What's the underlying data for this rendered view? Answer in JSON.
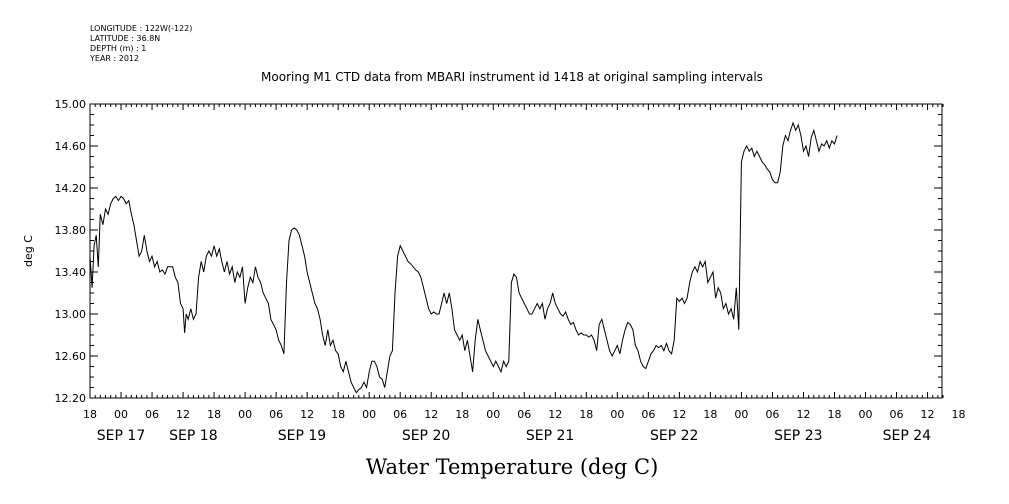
{
  "header": {
    "longitude": "LONGITUDE : 122W(-122)",
    "latitude": "LATITUDE : 36.8N",
    "depth": "DEPTH (m) : 1",
    "year": "YEAR : 2012"
  },
  "chart_data": {
    "type": "line",
    "title": "Mooring M1 CTD data from MBARI instrument id 1418 at original sampling intervals",
    "xlabel": "Water Temperature (deg C)",
    "ylabel": "deg C",
    "ylim": [
      12.2,
      15.0
    ],
    "y_ticks": [
      "12.20",
      "12.60",
      "13.00",
      "13.40",
      "13.80",
      "14.20",
      "14.60",
      "15.00"
    ],
    "x_unit": "hours since SEP 16 18:00",
    "xlim": [
      0,
      168
    ],
    "x_hour_ticks": [
      "18",
      "00",
      "06",
      "12",
      "18",
      "00",
      "06",
      "12",
      "18",
      "00",
      "06",
      "12",
      "18",
      "00",
      "06",
      "12",
      "18",
      "00",
      "06",
      "12",
      "18",
      "00",
      "06",
      "12",
      "18",
      "00",
      "06",
      "12",
      "18"
    ],
    "x_date_labels": [
      "SEP 17",
      "SEP 18",
      "SEP 19",
      "SEP 20",
      "SEP 21",
      "SEP 22",
      "SEP 23",
      "SEP 24"
    ],
    "series": [
      {
        "values": [
          [
            0,
            13.55
          ],
          [
            0.4,
            13.25
          ],
          [
            0.8,
            13.65
          ],
          [
            1.2,
            13.75
          ],
          [
            1.6,
            13.45
          ],
          [
            2,
            13.95
          ],
          [
            2.5,
            13.85
          ],
          [
            3,
            14.0
          ],
          [
            3.5,
            13.95
          ],
          [
            4,
            14.05
          ],
          [
            4.5,
            14.1
          ],
          [
            5,
            14.12
          ],
          [
            5.5,
            14.08
          ],
          [
            6,
            14.12
          ],
          [
            6.5,
            14.1
          ],
          [
            7,
            14.05
          ],
          [
            7.5,
            14.08
          ],
          [
            8,
            13.95
          ],
          [
            8.5,
            13.85
          ],
          [
            9,
            13.7
          ],
          [
            9.5,
            13.55
          ],
          [
            10,
            13.6
          ],
          [
            10.5,
            13.75
          ],
          [
            11,
            13.6
          ],
          [
            11.5,
            13.5
          ],
          [
            12,
            13.55
          ],
          [
            12.5,
            13.45
          ],
          [
            13,
            13.5
          ],
          [
            13.5,
            13.4
          ],
          [
            14,
            13.42
          ],
          [
            14.5,
            13.38
          ],
          [
            15,
            13.45
          ],
          [
            16,
            13.45
          ],
          [
            16.5,
            13.35
          ],
          [
            17,
            13.3
          ],
          [
            17.5,
            13.1
          ],
          [
            18,
            13.05
          ],
          [
            18.3,
            12.82
          ],
          [
            18.6,
            13.0
          ],
          [
            19,
            12.95
          ],
          [
            19.5,
            13.05
          ],
          [
            20,
            12.95
          ],
          [
            20.5,
            13.0
          ],
          [
            21,
            13.35
          ],
          [
            21.5,
            13.5
          ],
          [
            22,
            13.4
          ],
          [
            22.5,
            13.55
          ],
          [
            23,
            13.6
          ],
          [
            23.5,
            13.55
          ],
          [
            24,
            13.65
          ],
          [
            24.5,
            13.55
          ],
          [
            25,
            13.62
          ],
          [
            25.5,
            13.5
          ],
          [
            26,
            13.4
          ],
          [
            26.5,
            13.5
          ],
          [
            27,
            13.38
          ],
          [
            27.5,
            13.45
          ],
          [
            28,
            13.3
          ],
          [
            28.5,
            13.4
          ],
          [
            29,
            13.35
          ],
          [
            29.5,
            13.45
          ],
          [
            30,
            13.1
          ],
          [
            30.5,
            13.25
          ],
          [
            31,
            13.35
          ],
          [
            31.5,
            13.3
          ],
          [
            32,
            13.45
          ],
          [
            32.5,
            13.35
          ],
          [
            33,
            13.3
          ],
          [
            33.5,
            13.2
          ],
          [
            34,
            13.15
          ],
          [
            34.5,
            13.1
          ],
          [
            35,
            12.95
          ],
          [
            35.5,
            12.9
          ],
          [
            36,
            12.85
          ],
          [
            36.5,
            12.75
          ],
          [
            37,
            12.7
          ],
          [
            37.5,
            12.62
          ],
          [
            38,
            13.3
          ],
          [
            38.5,
            13.7
          ],
          [
            39,
            13.8
          ],
          [
            39.5,
            13.82
          ],
          [
            40,
            13.8
          ],
          [
            40.5,
            13.75
          ],
          [
            41,
            13.65
          ],
          [
            41.5,
            13.55
          ],
          [
            42,
            13.4
          ],
          [
            42.5,
            13.3
          ],
          [
            43,
            13.2
          ],
          [
            43.5,
            13.1
          ],
          [
            44,
            13.05
          ],
          [
            44.5,
            12.95
          ],
          [
            45,
            12.8
          ],
          [
            45.5,
            12.7
          ],
          [
            46,
            12.85
          ],
          [
            46.5,
            12.7
          ],
          [
            47,
            12.75
          ],
          [
            47.5,
            12.65
          ],
          [
            48,
            12.62
          ],
          [
            48.5,
            12.5
          ],
          [
            49,
            12.45
          ],
          [
            49.5,
            12.55
          ],
          [
            50,
            12.45
          ],
          [
            50.5,
            12.35
          ],
          [
            51,
            12.3
          ],
          [
            51.5,
            12.25
          ],
          [
            52,
            12.28
          ],
          [
            52.5,
            12.3
          ],
          [
            53,
            12.35
          ],
          [
            53.5,
            12.3
          ],
          [
            54,
            12.45
          ],
          [
            54.5,
            12.55
          ],
          [
            55,
            12.55
          ],
          [
            55.5,
            12.5
          ],
          [
            56,
            12.4
          ],
          [
            56.5,
            12.38
          ],
          [
            57,
            12.3
          ],
          [
            57.5,
            12.45
          ],
          [
            58,
            12.6
          ],
          [
            58.5,
            12.65
          ],
          [
            59,
            13.2
          ],
          [
            59.5,
            13.55
          ],
          [
            60,
            13.65
          ],
          [
            60.5,
            13.6
          ],
          [
            61,
            13.55
          ],
          [
            61.5,
            13.5
          ],
          [
            62,
            13.48
          ],
          [
            62.5,
            13.45
          ],
          [
            63,
            13.42
          ],
          [
            63.5,
            13.4
          ],
          [
            64,
            13.35
          ],
          [
            64.5,
            13.25
          ],
          [
            65,
            13.15
          ],
          [
            65.5,
            13.05
          ],
          [
            66,
            13.0
          ],
          [
            66.5,
            13.02
          ],
          [
            67,
            13.0
          ],
          [
            67.5,
            13.0
          ],
          [
            68,
            13.1
          ],
          [
            68.5,
            13.2
          ],
          [
            69,
            13.1
          ],
          [
            69.5,
            13.2
          ],
          [
            70,
            13.05
          ],
          [
            70.5,
            12.85
          ],
          [
            71,
            12.8
          ],
          [
            71.5,
            12.75
          ],
          [
            72,
            12.8
          ],
          [
            72.5,
            12.65
          ],
          [
            73,
            12.75
          ],
          [
            73.5,
            12.6
          ],
          [
            74,
            12.45
          ],
          [
            74.5,
            12.75
          ],
          [
            75,
            12.95
          ],
          [
            75.5,
            12.85
          ],
          [
            76,
            12.75
          ],
          [
            76.5,
            12.65
          ],
          [
            77,
            12.6
          ],
          [
            77.5,
            12.55
          ],
          [
            78,
            12.5
          ],
          [
            78.5,
            12.55
          ],
          [
            79,
            12.5
          ],
          [
            79.5,
            12.45
          ],
          [
            80,
            12.55
          ],
          [
            80.5,
            12.5
          ],
          [
            81,
            12.55
          ],
          [
            81.5,
            13.3
          ],
          [
            82,
            13.38
          ],
          [
            82.5,
            13.35
          ],
          [
            83,
            13.2
          ],
          [
            83.5,
            13.15
          ],
          [
            84,
            13.1
          ],
          [
            84.5,
            13.05
          ],
          [
            85,
            13.0
          ],
          [
            85.5,
            13.0
          ],
          [
            86,
            13.05
          ],
          [
            86.5,
            13.1
          ],
          [
            87,
            13.05
          ],
          [
            87.5,
            13.1
          ],
          [
            88,
            12.95
          ],
          [
            88.5,
            13.05
          ],
          [
            89,
            13.1
          ],
          [
            89.5,
            13.2
          ],
          [
            90,
            13.1
          ],
          [
            90.5,
            13.05
          ],
          [
            91,
            13.0
          ],
          [
            91.5,
            12.98
          ],
          [
            92,
            13.02
          ],
          [
            92.5,
            12.95
          ],
          [
            93,
            12.9
          ],
          [
            93.5,
            12.92
          ],
          [
            94,
            12.85
          ],
          [
            94.5,
            12.8
          ],
          [
            95,
            12.82
          ],
          [
            95.5,
            12.8
          ],
          [
            96,
            12.8
          ],
          [
            96.5,
            12.78
          ],
          [
            97,
            12.8
          ],
          [
            97.5,
            12.75
          ],
          [
            98,
            12.65
          ],
          [
            98.5,
            12.9
          ],
          [
            99,
            12.95
          ],
          [
            99.5,
            12.85
          ],
          [
            100,
            12.75
          ],
          [
            100.5,
            12.65
          ],
          [
            101,
            12.6
          ],
          [
            101.5,
            12.65
          ],
          [
            102,
            12.7
          ],
          [
            102.5,
            12.62
          ],
          [
            103,
            12.75
          ],
          [
            103.5,
            12.85
          ],
          [
            104,
            12.92
          ],
          [
            104.5,
            12.9
          ],
          [
            105,
            12.85
          ],
          [
            105.5,
            12.7
          ],
          [
            106,
            12.65
          ],
          [
            106.5,
            12.55
          ],
          [
            107,
            12.5
          ],
          [
            107.5,
            12.48
          ],
          [
            108,
            12.55
          ],
          [
            108.5,
            12.62
          ],
          [
            109,
            12.65
          ],
          [
            109.5,
            12.7
          ],
          [
            110,
            12.68
          ],
          [
            110.5,
            12.7
          ],
          [
            111,
            12.65
          ],
          [
            111.5,
            12.72
          ],
          [
            112,
            12.65
          ],
          [
            112.5,
            12.62
          ],
          [
            113,
            12.75
          ],
          [
            113.5,
            13.15
          ],
          [
            114,
            13.12
          ],
          [
            114.5,
            13.15
          ],
          [
            115,
            13.1
          ],
          [
            115.5,
            13.15
          ],
          [
            116,
            13.3
          ],
          [
            116.5,
            13.4
          ],
          [
            117,
            13.45
          ],
          [
            117.5,
            13.4
          ],
          [
            118,
            13.5
          ],
          [
            118.5,
            13.45
          ],
          [
            119,
            13.5
          ],
          [
            119.5,
            13.3
          ],
          [
            120,
            13.35
          ],
          [
            120.5,
            13.4
          ],
          [
            121,
            13.15
          ],
          [
            121.5,
            13.25
          ],
          [
            122,
            13.2
          ],
          [
            122.5,
            13.05
          ],
          [
            123,
            13.1
          ],
          [
            123.5,
            13.0
          ],
          [
            124,
            13.05
          ],
          [
            124.5,
            12.95
          ],
          [
            125,
            13.25
          ],
          [
            125.5,
            12.85
          ],
          [
            126,
            14.45
          ],
          [
            126.5,
            14.55
          ],
          [
            127,
            14.6
          ],
          [
            127.5,
            14.55
          ],
          [
            128,
            14.58
          ],
          [
            128.5,
            14.5
          ],
          [
            129,
            14.55
          ],
          [
            129.5,
            14.5
          ],
          [
            130,
            14.45
          ],
          [
            130.5,
            14.42
          ],
          [
            131,
            14.38
          ],
          [
            131.5,
            14.35
          ],
          [
            132,
            14.28
          ],
          [
            132.5,
            14.25
          ],
          [
            133,
            14.25
          ],
          [
            133.5,
            14.35
          ],
          [
            134,
            14.6
          ],
          [
            134.5,
            14.7
          ],
          [
            135,
            14.65
          ],
          [
            135.5,
            14.75
          ],
          [
            136,
            14.82
          ],
          [
            136.5,
            14.75
          ],
          [
            137,
            14.8
          ],
          [
            137.5,
            14.7
          ],
          [
            138,
            14.55
          ],
          [
            138.5,
            14.6
          ],
          [
            139,
            14.5
          ],
          [
            139.5,
            14.68
          ],
          [
            140,
            14.75
          ],
          [
            140.5,
            14.65
          ],
          [
            141,
            14.55
          ],
          [
            141.5,
            14.62
          ],
          [
            142,
            14.6
          ],
          [
            142.5,
            14.65
          ],
          [
            143,
            14.58
          ],
          [
            143.5,
            14.65
          ],
          [
            144,
            14.62
          ],
          [
            144.5,
            14.7
          ]
        ]
      }
    ]
  }
}
